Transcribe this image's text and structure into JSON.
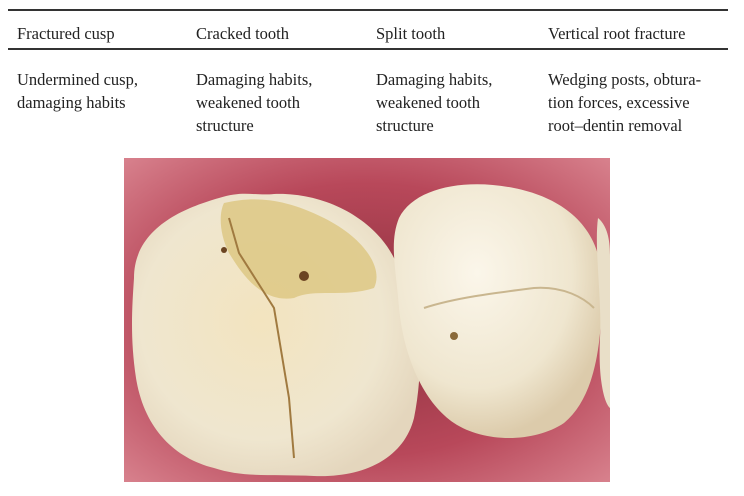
{
  "table": {
    "headers": [
      "Fractured cusp",
      "Cracked tooth",
      "Split tooth",
      "Vertical root fracture"
    ],
    "row": [
      "Undermined cusp,\ndamaging habits",
      "Damaging habits,\nweakened tooth\nstructure",
      "Damaging habits,\nweakened tooth\nstructure",
      "Wedging posts, obtura-\ntion forces, excessive\nroot–dentin removal"
    ]
  },
  "colors": {
    "gum": "#b8485a",
    "enamel": "#efe6cf",
    "stain": "#d9c27a"
  }
}
